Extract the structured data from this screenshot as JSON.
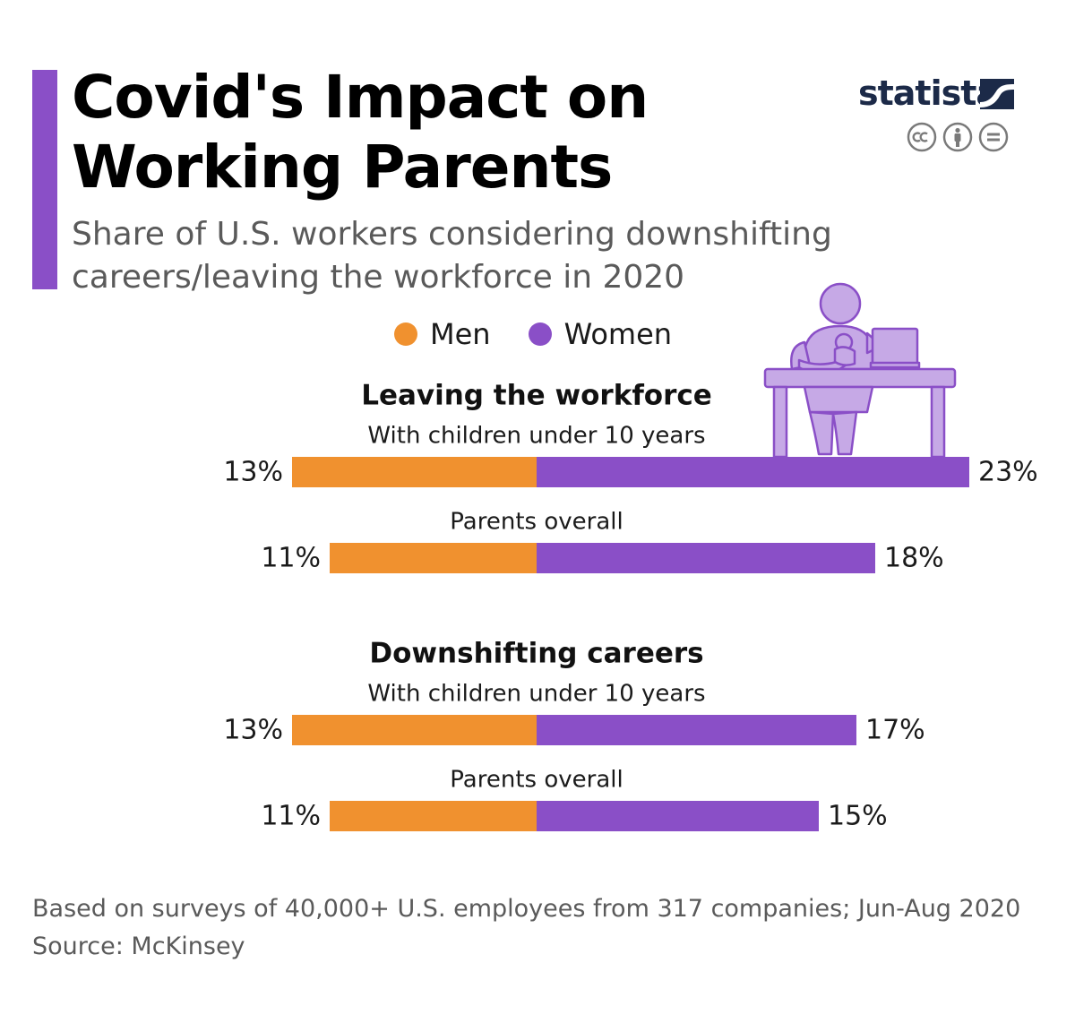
{
  "title_line1": "Covid's Impact on",
  "title_line2": "Working Parents",
  "subtitle_line1": "Share of U.S. workers considering downshifting",
  "subtitle_line2": "careers/leaving the workforce in 2020",
  "brand": {
    "name": "statista"
  },
  "colors": {
    "men": "#f0912f",
    "women": "#8a4fc7",
    "accent": "#8a4fc7",
    "illustration_fill": "#c6a9e6",
    "illustration_stroke": "#8a4fc7"
  },
  "chart_data": {
    "type": "bar",
    "orientation": "horizontal-diverging",
    "legend": [
      "Men",
      "Women"
    ],
    "groups": [
      {
        "heading": "Leaving the workforce",
        "rows": [
          {
            "label": "With children under 10 years",
            "men": 13,
            "women": 23,
            "men_label": "13%",
            "women_label": "23%"
          },
          {
            "label": "Parents overall",
            "men": 11,
            "women": 18,
            "men_label": "11%",
            "women_label": "18%"
          }
        ]
      },
      {
        "heading": "Downshifting careers",
        "rows": [
          {
            "label": "With children under 10 years",
            "men": 13,
            "women": 17,
            "men_label": "13%",
            "women_label": "17%"
          },
          {
            "label": "Parents overall",
            "men": 11,
            "women": 15,
            "men_label": "11%",
            "women_label": "15%"
          }
        ]
      }
    ],
    "unit": "%"
  },
  "footnote_line1": "Based on surveys of 40,000+ U.S. employees from 317 companies; Jun-Aug 2020",
  "footnote_line2": "Source: McKinsey"
}
